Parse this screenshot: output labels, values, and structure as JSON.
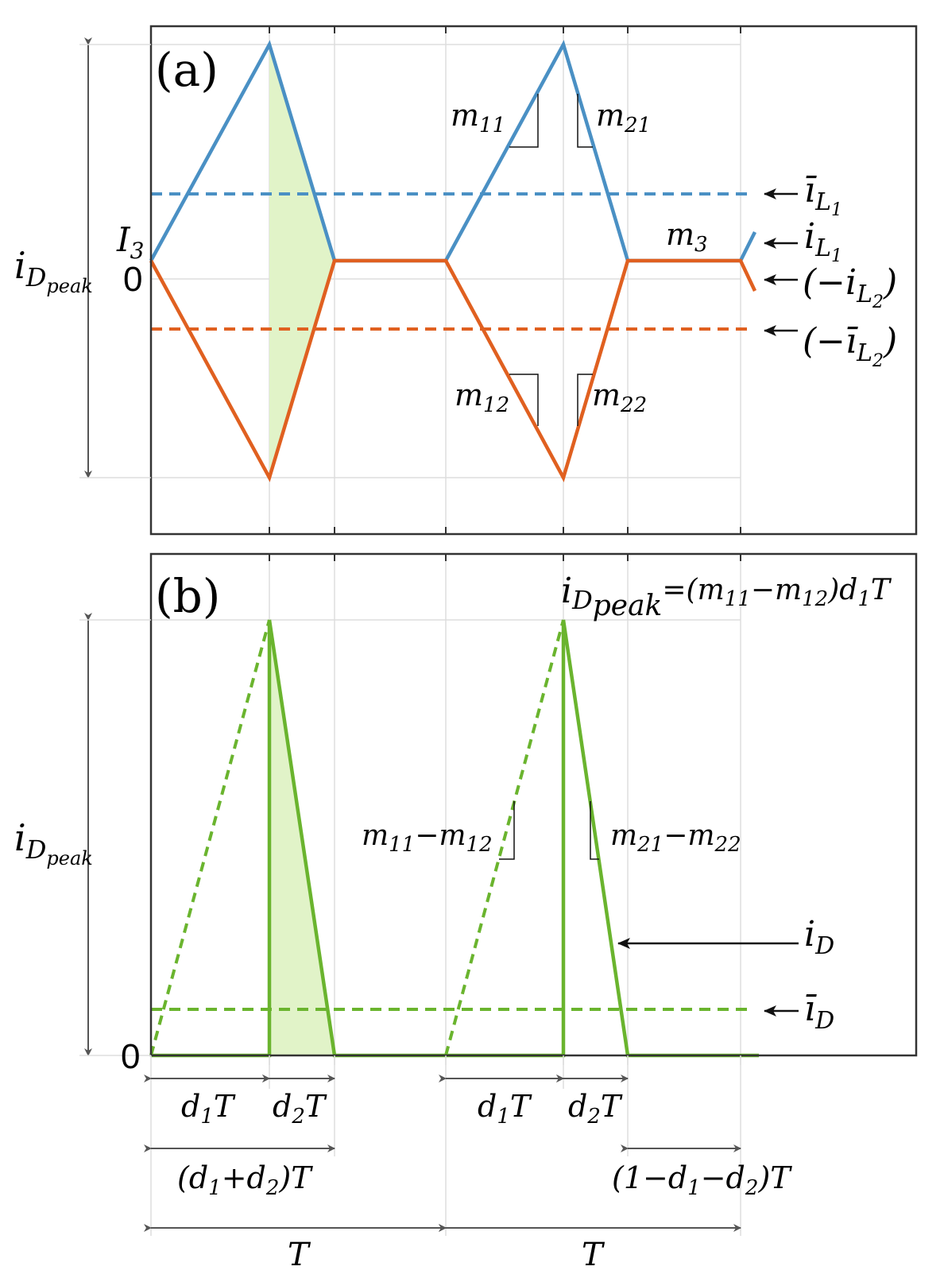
{
  "panels": {
    "a": {
      "label": "(a)"
    },
    "b": {
      "label": "(b)"
    }
  },
  "colors": {
    "iL1": "#4a90c4",
    "iL2": "#e06020",
    "iD": "#6ab42e",
    "shade": "#e1f3c8",
    "grid": "#dddddd",
    "frame": "#333333",
    "annot": "#111111"
  },
  "labels": {
    "I3": "I",
    "I3_sub": "3",
    "zero": "0",
    "iDpeak": "i",
    "iDpeak_sub": "D",
    "iDpeak_subsub": "peak",
    "m11": "m",
    "m11_sub": "11",
    "m21": "m",
    "m21_sub": "21",
    "m12": "m",
    "m12_sub": "12",
    "m22": "m",
    "m22_sub": "22",
    "m3": "m",
    "m3_sub": "3",
    "iL1_avg": "ī",
    "iL1_avg_sub": "L",
    "iL1_avg_subsub": "1",
    "iL1": "i",
    "iL1_sub": "L",
    "iL1_subsub": "1",
    "neg_iL2_open": "(−",
    "neg_iL2": "i",
    "neg_iL2_sub": "L",
    "neg_iL2_subsub": "2",
    "neg_iL2_close": ")",
    "neg_iL2_avg_open": "(−",
    "neg_iL2_avg": "ī",
    "neg_iL2_avg_sub": "L",
    "neg_iL2_avg_subsub": "2",
    "neg_iL2_avg_close": ")",
    "slope_b1": "m",
    "slope_b1_s1": "11",
    "slope_b1_mid": "−m",
    "slope_b1_s2": "12",
    "slope_b2": "m",
    "slope_b2_s1": "21",
    "slope_b2_mid": "−m",
    "slope_b2_s2": "22",
    "iD": "i",
    "iD_sub": "D",
    "iD_avg": "ī",
    "iD_avg_sub": "D",
    "peak_eq_i": "i",
    "peak_eq_sub": "D",
    "peak_eq_subsub": "peak",
    "peak_eq_rhs": "=(m",
    "peak_eq_s1": "11",
    "peak_eq_mid": "−m",
    "peak_eq_s2": "12",
    "peak_eq_end": ")d",
    "peak_eq_s3": "1",
    "peak_eq_T": "T"
  },
  "timing": {
    "d1T_a": "d",
    "d1T_a_sub": "1",
    "d1T_a_T": "T",
    "d2T_a": "d",
    "d2T_a_sub": "2",
    "d2T_a_T": "T",
    "d1T_b": "d",
    "d1T_b_sub": "1",
    "d1T_b_T": "T",
    "d2T_b": "d",
    "d2T_b_sub": "2",
    "d2T_b_T": "T",
    "sum_open": "(d",
    "sum_s1": "1",
    "sum_plus": "+d",
    "sum_s2": "2",
    "sum_close": ")T",
    "rest_open": "(1−d",
    "rest_s1": "1",
    "rest_mid": "−d",
    "rest_s2": "2",
    "rest_close": ")T",
    "T1": "T",
    "T2": "T"
  }
}
